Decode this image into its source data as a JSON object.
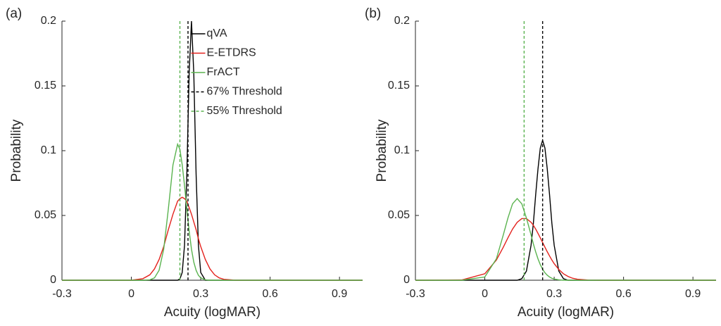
{
  "chart_data": [
    {
      "type": "line",
      "panel_label": "(a)",
      "x_label": "Acuity (logMAR)",
      "y_label": "Probability",
      "xlim": [
        -0.3,
        1.0
      ],
      "xticks": [
        -0.3,
        0,
        0.3,
        0.6,
        0.9
      ],
      "ylim": [
        0,
        0.2
      ],
      "yticks": [
        0,
        0.05,
        0.1,
        0.15,
        0.2
      ],
      "legend": "upper center",
      "x": [
        -0.3,
        -0.1,
        0,
        0.05,
        0.08,
        0.1,
        0.12,
        0.14,
        0.16,
        0.18,
        0.2,
        0.21,
        0.22,
        0.23,
        0.24,
        0.25,
        0.26,
        0.27,
        0.28,
        0.29,
        0.3,
        0.32,
        0.34,
        0.36,
        0.38,
        0.4,
        0.45,
        0.5,
        1.0
      ],
      "series": [
        {
          "name": "qVA",
          "color": "#000000",
          "values": [
            0,
            0,
            0,
            0,
            0,
            0,
            0,
            0,
            0,
            0,
            0,
            0.001,
            0.006,
            0.027,
            0.082,
            0.16,
            0.2,
            0.16,
            0.082,
            0.027,
            0.006,
            0,
            0,
            0,
            0,
            0,
            0,
            0,
            0
          ]
        },
        {
          "name": "E-ETDRS",
          "color": "#e3211c",
          "values": [
            0,
            0,
            0,
            0.0012,
            0.0042,
            0.0087,
            0.016,
            0.026,
            0.039,
            0.051,
            0.061,
            0.063,
            0.064,
            0.063,
            0.061,
            0.056,
            0.051,
            0.045,
            0.039,
            0.032,
            0.026,
            0.016,
            0.0087,
            0.0042,
            0.0018,
            0.0007,
            0,
            0,
            0
          ]
        },
        {
          "name": "FrACT",
          "color": "#5ab34f",
          "values": [
            0,
            0,
            0,
            0,
            0.0003,
            0.0018,
            0.0077,
            0.024,
            0.055,
            0.089,
            0.105,
            0.101,
            0.089,
            0.073,
            0.055,
            0.038,
            0.024,
            0.014,
            0.0077,
            0.0038,
            0.0018,
            0.0003,
            0,
            0,
            0,
            0,
            0,
            0,
            0
          ]
        }
      ],
      "thresholds": [
        {
          "name": "67% Threshold",
          "color": "#000000",
          "style": "dashed",
          "x": 0.245
        },
        {
          "name": "55% Threshold",
          "color": "#5ab34f",
          "style": "dashed",
          "x": 0.21
        }
      ]
    },
    {
      "type": "line",
      "panel_label": "(b)",
      "x_label": "Acuity (logMAR)",
      "y_label": "Probability",
      "xlim": [
        -0.3,
        1.0
      ],
      "xticks": [
        -0.3,
        0,
        0.3,
        0.6,
        0.9
      ],
      "ylim": [
        0,
        0.2
      ],
      "yticks": [
        0,
        0.05,
        0.1,
        0.15,
        0.2
      ],
      "x": [
        -0.3,
        -0.1,
        0,
        0.05,
        0.08,
        0.1,
        0.12,
        0.14,
        0.16,
        0.18,
        0.2,
        0.21,
        0.22,
        0.23,
        0.24,
        0.25,
        0.26,
        0.27,
        0.28,
        0.29,
        0.3,
        0.32,
        0.34,
        0.36,
        0.38,
        0.4,
        0.45,
        0.5,
        1.0
      ],
      "series": [
        {
          "color": "#000000",
          "values": [
            0,
            0,
            0,
            0,
            0,
            0,
            0,
            0,
            0.0012,
            0.0071,
            0.027,
            0.044,
            0.066,
            0.086,
            0.102,
            0.108,
            0.102,
            0.086,
            0.066,
            0.044,
            0.027,
            0.0071,
            0.0012,
            0,
            0,
            0,
            0,
            0,
            0
          ]
        },
        {
          "color": "#e3211c",
          "values": [
            0,
            0.0002,
            0.005,
            0.0156,
            0.0255,
            0.0327,
            0.0395,
            0.0447,
            0.0476,
            0.0476,
            0.0447,
            0.0424,
            0.0395,
            0.0362,
            0.0327,
            0.0291,
            0.0255,
            0.022,
            0.0187,
            0.0156,
            0.0128,
            0.0083,
            0.005,
            0.0029,
            0.0015,
            0.0008,
            0.0001,
            0,
            0
          ]
        },
        {
          "color": "#5ab34f",
          "values": [
            0,
            0,
            0.0025,
            0.0165,
            0.035,
            0.048,
            0.059,
            0.063,
            0.059,
            0.048,
            0.035,
            0.028,
            0.0219,
            0.0165,
            0.012,
            0.0085,
            0.0058,
            0.0039,
            0.0025,
            0.0015,
            0.0009,
            0.0003,
            0,
            0,
            0,
            0,
            0,
            0,
            0
          ]
        }
      ],
      "thresholds": [
        {
          "color": "#000000",
          "style": "dashed",
          "x": 0.25
        },
        {
          "color": "#5ab34f",
          "style": "dashed",
          "x": 0.17
        }
      ]
    }
  ]
}
